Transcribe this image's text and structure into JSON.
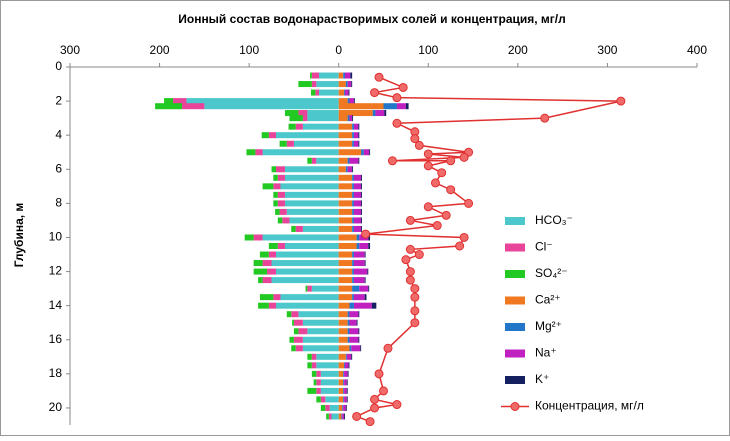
{
  "chart_data": {
    "type": "bar",
    "orientation": "horizontal",
    "stacked": true,
    "title": "Ионный состав водонарастворимых солей и концентрация, мг/л",
    "y_label": "Глубина, м",
    "depths": [
      0.5,
      1,
      1.5,
      2,
      2.3,
      2.7,
      3,
      3.5,
      4,
      4.5,
      5,
      5.5,
      6,
      6.5,
      7,
      7.5,
      8,
      8.5,
      9,
      9.5,
      10,
      10.5,
      11,
      11.5,
      12,
      12.5,
      13,
      13.5,
      14,
      14.5,
      15,
      15.5,
      16,
      16.5,
      17,
      17.5,
      18,
      18.5,
      19,
      19.5,
      20,
      20.5
    ],
    "series": [
      {
        "name": "HCO₃⁻",
        "color": "#4cc8cc",
        "values": [
          -22,
          -25,
          -22,
          -170,
          -150,
          -35,
          -35,
          -40,
          -70,
          -50,
          -85,
          -25,
          -60,
          -60,
          -65,
          -60,
          -60,
          -58,
          -55,
          -40,
          -85,
          -60,
          -70,
          -75,
          -70,
          -75,
          -30,
          -65,
          -70,
          -45,
          -40,
          -35,
          -40,
          -40,
          -25,
          -25,
          -20,
          -20,
          -20,
          -15,
          -10,
          -8
        ]
      },
      {
        "name": "Cl⁻",
        "color": "#e8449a",
        "values": [
          -8,
          -5,
          -4,
          -15,
          -25,
          -10,
          -5,
          -8,
          -8,
          -8,
          -8,
          -5,
          -10,
          -8,
          -8,
          -8,
          -8,
          -8,
          -8,
          -8,
          -10,
          -8,
          -8,
          -10,
          -10,
          -10,
          -5,
          -8,
          -8,
          -8,
          -10,
          -10,
          -10,
          -8,
          -5,
          -5,
          -5,
          -5,
          -5,
          -5,
          -5,
          -3
        ]
      },
      {
        "name": "SO₄²⁻",
        "color": "#22c922",
        "values": [
          -2,
          -15,
          -5,
          -10,
          -30,
          -15,
          -15,
          -8,
          -8,
          -8,
          -10,
          -5,
          -5,
          -5,
          -12,
          -5,
          -5,
          -5,
          -5,
          -5,
          -10,
          -10,
          -10,
          -10,
          -15,
          -5,
          -2,
          -15,
          -12,
          -5,
          -2,
          -5,
          -5,
          -5,
          -5,
          -5,
          -5,
          -3,
          -10,
          -5,
          -5,
          -3
        ]
      },
      {
        "name": "Ca²⁺",
        "color": "#f07820",
        "values": [
          5,
          8,
          6,
          10,
          50,
          38,
          10,
          15,
          15,
          15,
          25,
          10,
          8,
          15,
          15,
          15,
          15,
          15,
          15,
          15,
          20,
          20,
          15,
          15,
          15,
          15,
          15,
          15,
          12,
          10,
          10,
          10,
          10,
          12,
          8,
          6,
          5,
          5,
          5,
          5,
          4,
          3
        ]
      },
      {
        "name": "Mg²⁺",
        "color": "#2277c8",
        "values": [
          2,
          2,
          1,
          2,
          15,
          3,
          2,
          2,
          2,
          2,
          3,
          2,
          2,
          2,
          2,
          2,
          2,
          2,
          2,
          2,
          3,
          3,
          2,
          2,
          2,
          2,
          8,
          2,
          5,
          2,
          2,
          2,
          2,
          2,
          1,
          1,
          1,
          1,
          1,
          1,
          1,
          1
        ]
      },
      {
        "name": "Na⁺",
        "color": "#c020c0",
        "values": [
          6,
          4,
          4,
          5,
          10,
          10,
          3,
          5,
          5,
          5,
          6,
          10,
          5,
          8,
          8,
          8,
          8,
          8,
          8,
          8,
          10,
          10,
          12,
          12,
          15,
          12,
          10,
          12,
          20,
          10,
          8,
          10,
          10,
          10,
          5,
          4,
          4,
          3,
          3,
          3,
          3,
          2
        ]
      },
      {
        "name": "K⁺",
        "color": "#142060",
        "values": [
          2,
          1,
          1,
          1,
          3,
          2,
          1,
          1,
          1,
          1,
          1,
          1,
          1,
          1,
          1,
          1,
          1,
          1,
          1,
          1,
          2,
          2,
          1,
          1,
          1,
          1,
          1,
          2,
          5,
          1,
          1,
          1,
          1,
          1,
          1,
          1,
          1,
          1,
          1,
          1,
          1,
          1
        ]
      }
    ],
    "line": {
      "name": "Концентрация, мг/л",
      "color": "#e03030",
      "depths": [
        0.6,
        1.2,
        1.5,
        1.8,
        2.0,
        3.0,
        3.3,
        3.8,
        4.2,
        4.6,
        5.0,
        5.1,
        5.3,
        5.5,
        5.5,
        5.8,
        6.2,
        6.8,
        7.2,
        8.0,
        8.2,
        8.7,
        9.0,
        9.3,
        9.8,
        10.0,
        10.5,
        10.7,
        11.0,
        11.3,
        12.0,
        12.5,
        13.0,
        13.5,
        14.3,
        15.0,
        16.5,
        18.0,
        19.0,
        19.5,
        19.8,
        20.0,
        20.5,
        20.8
      ],
      "values": [
        45,
        72,
        40,
        65,
        315,
        230,
        65,
        85,
        85,
        90,
        145,
        100,
        140,
        60,
        125,
        100,
        115,
        108,
        125,
        145,
        100,
        120,
        80,
        110,
        30,
        140,
        135,
        80,
        90,
        75,
        80,
        80,
        85,
        85,
        85,
        85,
        55,
        45,
        50,
        40,
        65,
        40,
        20,
        35
      ]
    },
    "xlim": [
      -300,
      400
    ],
    "xticks": [
      {
        "value": -300,
        "label": "300"
      },
      {
        "value": -200,
        "label": "200"
      },
      {
        "value": -100,
        "label": "100"
      },
      0,
      100,
      200,
      300,
      400
    ],
    "ylim": [
      0,
      21
    ],
    "yticks": [
      0,
      2,
      4,
      6,
      8,
      10,
      12,
      14,
      16,
      18,
      20
    ],
    "y_reversed": true
  }
}
